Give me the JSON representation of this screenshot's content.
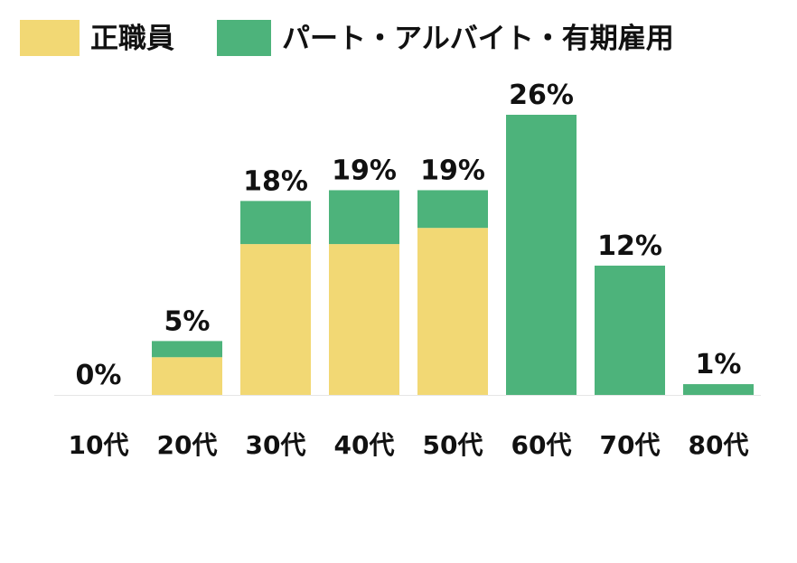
{
  "chart_data": {
    "type": "bar",
    "stacked": true,
    "categories": [
      "10代",
      "20代",
      "30代",
      "40代",
      "50代",
      "60代",
      "70代",
      "80代"
    ],
    "series": [
      {
        "name": "正職員",
        "color": "#F2D874",
        "values": [
          0,
          3.5,
          14,
          14,
          15.5,
          0,
          0,
          0
        ]
      },
      {
        "name": "パート・アルバイト・有期雇用",
        "color": "#4DB37B",
        "values": [
          0,
          1.5,
          4,
          5,
          3.5,
          26,
          12,
          1
        ]
      }
    ],
    "totals": [
      0,
      5,
      18,
      19,
      19,
      26,
      12,
      1
    ],
    "value_labels": [
      "0%",
      "5%",
      "18%",
      "19%",
      "19%",
      "26%",
      "12%",
      "1%"
    ],
    "ylim": [
      0,
      26
    ],
    "grid": false,
    "legend_position": "top-left"
  }
}
